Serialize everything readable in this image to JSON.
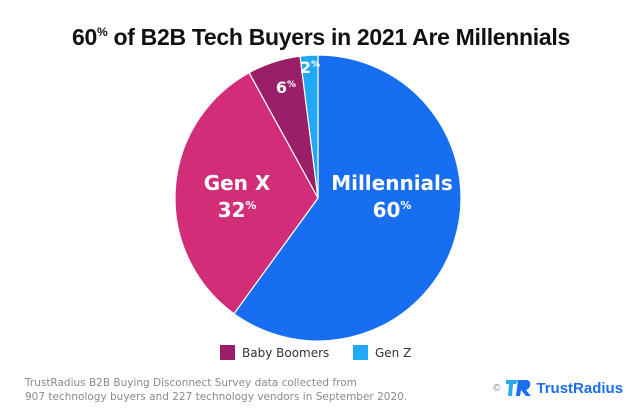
{
  "chart_data": {
    "type": "pie",
    "title_main": "60",
    "title_sup": "%",
    "title_rest": " of B2B Tech Buyers in 2021 Are Millennials",
    "slices": [
      {
        "name": "Millennials",
        "value": 60,
        "label": "Millennials",
        "pct": "60",
        "color": "#176ef0"
      },
      {
        "name": "Gen X",
        "value": 32,
        "label": "Gen X",
        "pct": "32",
        "color": "#d22d78"
      },
      {
        "name": "Baby Boomers",
        "value": 6,
        "label": "",
        "pct": "6",
        "color": "#9a1f68"
      },
      {
        "name": "Gen Z",
        "value": 2,
        "label": "",
        "pct": "2",
        "color": "#21a9f7"
      }
    ],
    "legend": [
      {
        "name": "Baby Boomers",
        "color": "#9a1f68"
      },
      {
        "name": "Gen Z",
        "color": "#21a9f7"
      }
    ],
    "legend_position": "bottom"
  },
  "footnote": {
    "line1": "TrustRadius B2B Buying Disconnect Survey data collected from",
    "line2": "907 technology buyers and 227 technology vendors in September 2020."
  },
  "brand": {
    "copyright": "©",
    "name": "TrustRadius",
    "color": "#1a6ef0"
  }
}
